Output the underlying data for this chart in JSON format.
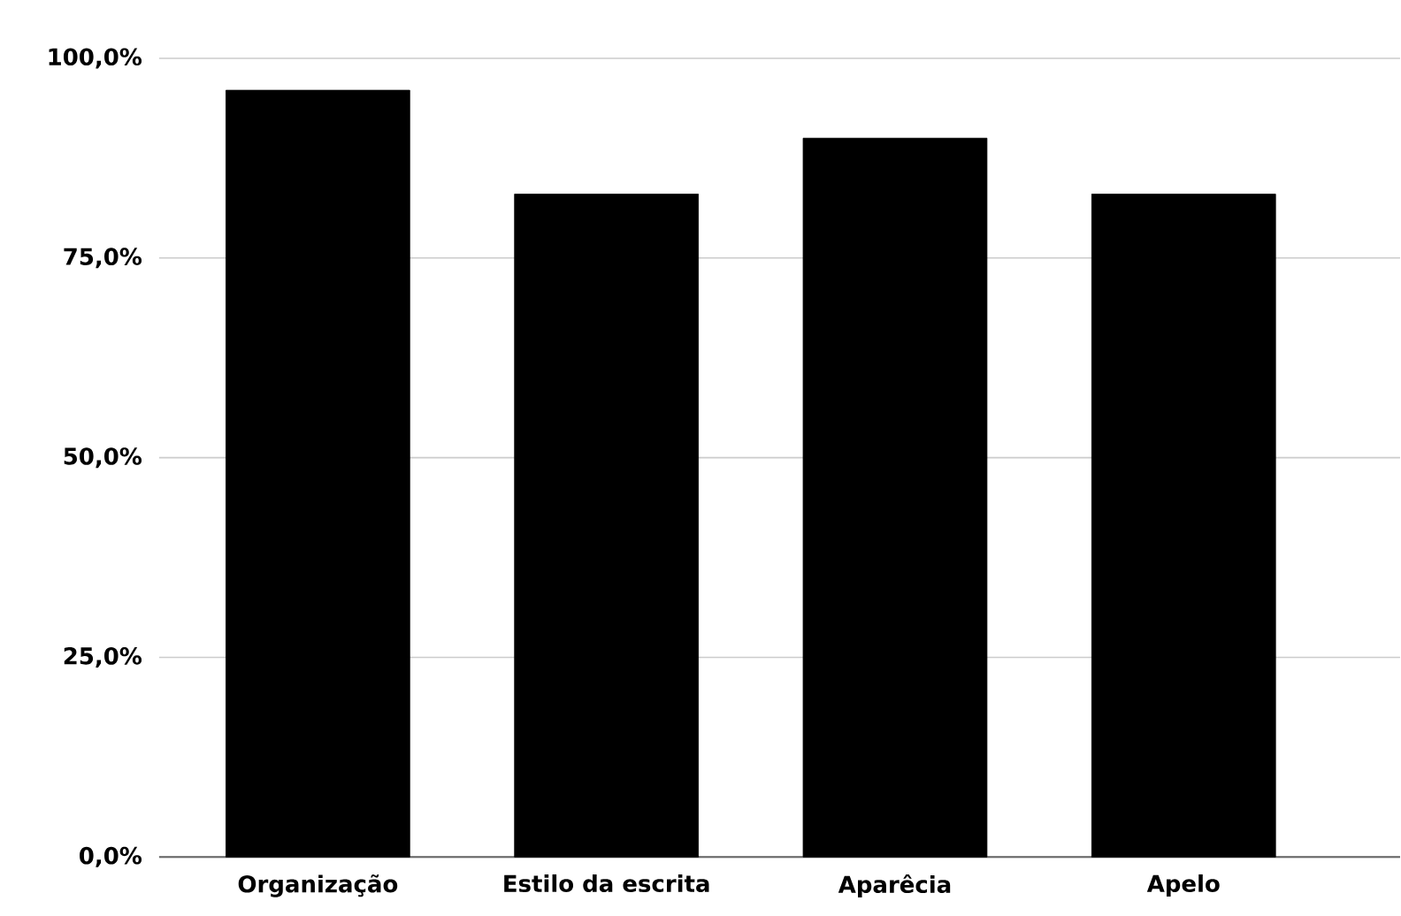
{
  "chart_data": {
    "type": "bar",
    "categories": [
      "Organização",
      "Estilo da escrita",
      "Aparêcia",
      "Apelo"
    ],
    "values": [
      96,
      83,
      90,
      83
    ],
    "color": "#000000",
    "ylim": [
      0,
      100
    ],
    "yticks": [
      {
        "value": 0,
        "label": "0,0%"
      },
      {
        "value": 25,
        "label": "25,0%"
      },
      {
        "value": 50,
        "label": "50,0%"
      },
      {
        "value": 75,
        "label": "75,0%"
      },
      {
        "value": 100,
        "label": "100,0%"
      }
    ],
    "grid": "y"
  }
}
